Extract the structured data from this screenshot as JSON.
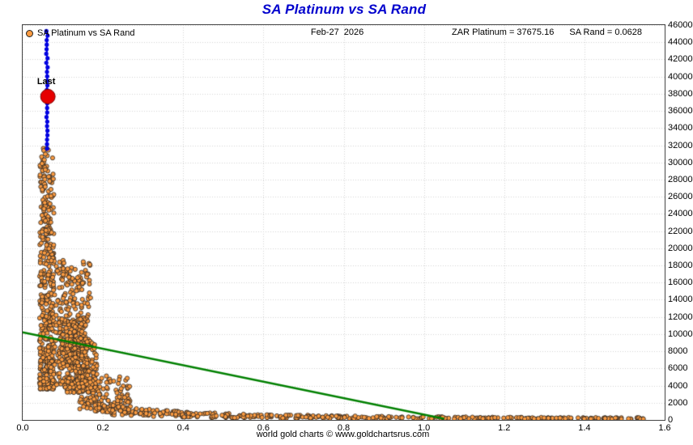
{
  "title": "SA Platinum vs SA Rand",
  "legend": {
    "label": "SA Platinum vs SA Rand"
  },
  "header": {
    "date": "Feb-27  2026",
    "zar_platinum": "ZAR Platinum = 37675.16",
    "sa_rand": "SA Rand = 0.0628"
  },
  "footer": {
    "caption": "world gold charts © www.goldchartsrus.com"
  },
  "chart_data": {
    "type": "scatter",
    "title": "SA Platinum vs SA Rand",
    "xlabel": "",
    "ylabel": "",
    "xlim": [
      0,
      1.6
    ],
    "ylim": [
      0,
      46000
    ],
    "x_ticks": [
      0.0,
      0.2,
      0.4,
      0.6,
      0.8,
      1.0,
      1.2,
      1.4,
      1.6
    ],
    "x_tick_labels": [
      "0.0",
      "0.2",
      "0.4",
      "0.6",
      "0.8",
      "1.0",
      "1.2",
      "1.4",
      "1.6"
    ],
    "y_ticks": [
      0,
      2000,
      4000,
      6000,
      8000,
      10000,
      12000,
      14000,
      16000,
      18000,
      20000,
      22000,
      24000,
      26000,
      28000,
      30000,
      32000,
      34000,
      36000,
      38000,
      40000,
      42000,
      44000,
      46000
    ],
    "grid": "dotted",
    "grid_color": "#d4d4d4",
    "point_style": {
      "fill": "#fb9b41",
      "stroke": "#222222",
      "radius": 2.6
    },
    "clusters": [
      {
        "name": "main-strip",
        "shape": "box",
        "count": 400,
        "x": [
          0.042,
          0.078
        ],
        "y": [
          3600,
          31800
        ],
        "y_bias": 1.6
      },
      {
        "name": "upper-sparse",
        "shape": "box",
        "count": 40,
        "x": [
          0.048,
          0.065
        ],
        "y": [
          20000,
          31500
        ],
        "y_bias": 1
      },
      {
        "name": "blob",
        "shape": "box",
        "count": 300,
        "x": [
          0.07,
          0.17
        ],
        "y": [
          3800,
          18600
        ],
        "y_bias": 1.25
      },
      {
        "name": "knot",
        "shape": "box",
        "count": 170,
        "x": [
          0.09,
          0.158
        ],
        "y": [
          6000,
          11800
        ],
        "y_bias": 1
      },
      {
        "name": "dense-low",
        "shape": "box",
        "count": 230,
        "x": [
          0.11,
          0.185
        ],
        "y": [
          3200,
          9500
        ],
        "y_bias": 1.2
      },
      {
        "name": "drop",
        "shape": "box",
        "count": 130,
        "x": [
          0.14,
          0.27
        ],
        "y": [
          1200,
          5200
        ],
        "y_bias": 1.3
      },
      {
        "name": "tail",
        "shape": "curve",
        "count": 430,
        "x": [
          0.18,
          1.55
        ],
        "a": 260,
        "jitter": 0.5,
        "y_floor": 80,
        "x_bias": 1.3
      }
    ],
    "blue_run": {
      "x": 0.0605,
      "y": [
        31600,
        45300
      ],
      "count": 27,
      "color": "#0000e0"
    },
    "last_point": {
      "label": "Last",
      "x": 0.0628,
      "y": 37675.16,
      "radius": 9,
      "color": "#e60000"
    },
    "trendline": {
      "from": [
        0.0,
        10200
      ],
      "to": [
        1.05,
        150
      ],
      "color": "#008000",
      "width": 2.5
    },
    "legend_position": "top-left"
  }
}
